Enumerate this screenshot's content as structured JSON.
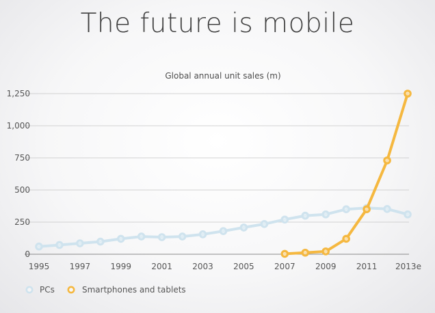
{
  "slide": {
    "title": "The future is mobile"
  },
  "chart_data": {
    "type": "line",
    "title": "Global annual unit sales (m)",
    "xlabel": "",
    "ylabel": "",
    "categories": [
      "1995",
      "1996",
      "1997",
      "1998",
      "1999",
      "2000",
      "2001",
      "2002",
      "2003",
      "2004",
      "2005",
      "2006",
      "2007",
      "2008",
      "2009",
      "2010",
      "2011",
      "2012",
      "2013e"
    ],
    "x_tick_labels": [
      "1995",
      "1997",
      "1999",
      "2001",
      "2003",
      "2005",
      "2007",
      "2009",
      "2011",
      "2013e"
    ],
    "y_ticks": [
      0,
      250,
      500,
      750,
      1000,
      1250
    ],
    "y_tick_labels": [
      "0",
      "250",
      "500",
      "750",
      "1,000",
      "1,250"
    ],
    "ylim": [
      0,
      1250
    ],
    "grid": true,
    "legend_position": "bottom-left",
    "series": [
      {
        "name": "PCs",
        "color": "#cfe3ee",
        "values": [
          60,
          72,
          85,
          98,
          120,
          138,
          133,
          138,
          155,
          180,
          208,
          235,
          270,
          300,
          310,
          350,
          360,
          352,
          310
        ]
      },
      {
        "name": "Smartphones and tablets",
        "color": "#f5b840",
        "values": [
          null,
          null,
          null,
          null,
          null,
          null,
          null,
          null,
          null,
          null,
          null,
          null,
          3,
          12,
          22,
          120,
          350,
          730,
          1250
        ]
      }
    ]
  }
}
